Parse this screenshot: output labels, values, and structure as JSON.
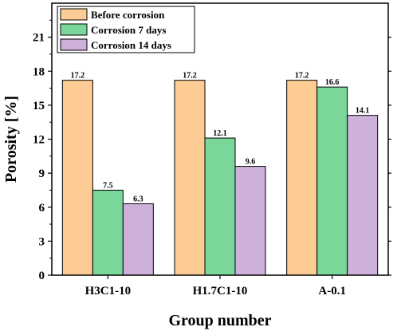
{
  "chart_data": {
    "type": "bar",
    "title": "",
    "xlabel": "Group number",
    "ylabel": "Porosity [%]",
    "categories": [
      "H3C1-10",
      "H1.7C1-10",
      "A-0.1"
    ],
    "series": [
      {
        "name": "Before corrosion",
        "values": [
          17.2,
          17.2,
          17.2
        ],
        "color": "#FDCC94"
      },
      {
        "name": "Corrosion 7 days",
        "values": [
          7.5,
          12.1,
          16.6
        ],
        "color": "#7BD69A"
      },
      {
        "name": "Corrosion 14 days",
        "values": [
          6.3,
          9.6,
          14.1
        ],
        "color": "#CDB1DA"
      }
    ],
    "ylim": [
      0,
      24
    ],
    "yticks": [
      0,
      3,
      6,
      9,
      12,
      15,
      18,
      21
    ],
    "ytick_labels": [
      "0",
      "3",
      "6",
      "9",
      "12",
      "15",
      "18",
      "21"
    ],
    "data_labels": [
      [
        "17.2",
        "17.2",
        "17.2"
      ],
      [
        "7.5",
        "12.1",
        "16.6"
      ],
      [
        "6.3",
        "9.6",
        "14.1"
      ]
    ],
    "grid": false,
    "legend_position": "top-left"
  }
}
